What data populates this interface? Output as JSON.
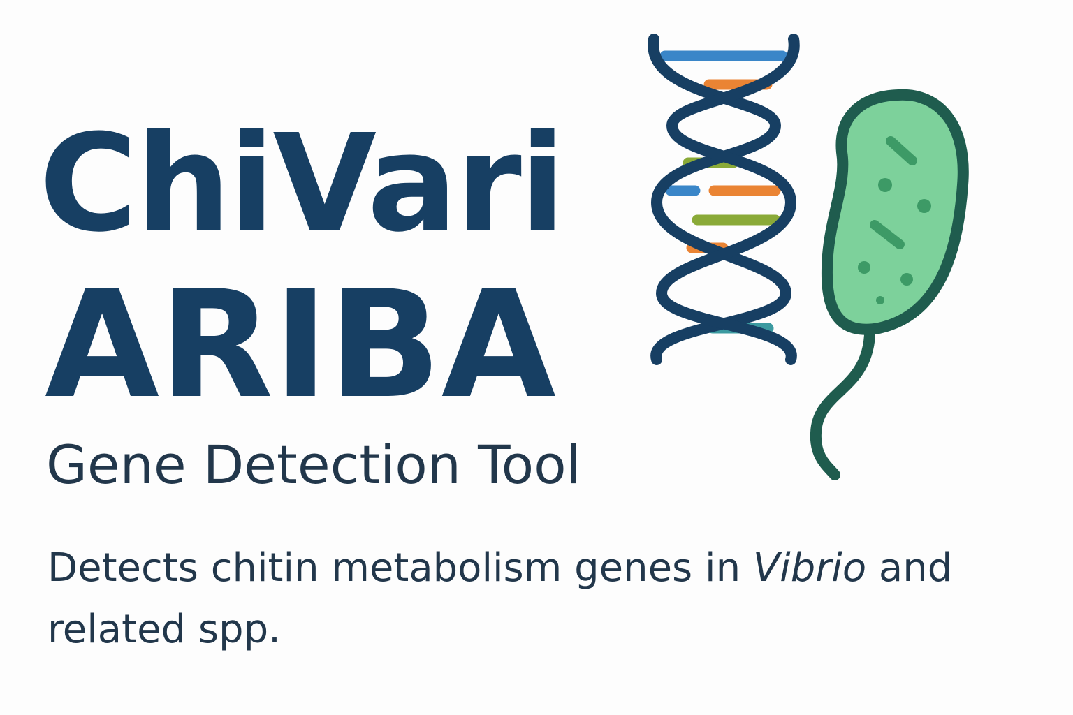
{
  "logo": {
    "title_line_1": "ChiVari",
    "title_line_2": "ARIBA",
    "subtitle": "Gene Detection Tool"
  },
  "description": {
    "text_before": "Detects chitin metabolism genes in ",
    "genus": "Vibrio",
    "text_after": " and related spp."
  },
  "icons": {
    "dna": "dna-helix-icon",
    "bacterium": "bacterium-icon"
  },
  "colors": {
    "title": "#173f63",
    "text": "#22374b",
    "helix_strand": "#173f63",
    "base_blue": "#3a86c8",
    "base_orange": "#ea8434",
    "base_green": "#8aaa38",
    "base_teal": "#3c9aa0",
    "cell_fill": "#7dd19b",
    "cell_outline": "#1f5c4e",
    "cell_spots": "#3d9a66"
  }
}
